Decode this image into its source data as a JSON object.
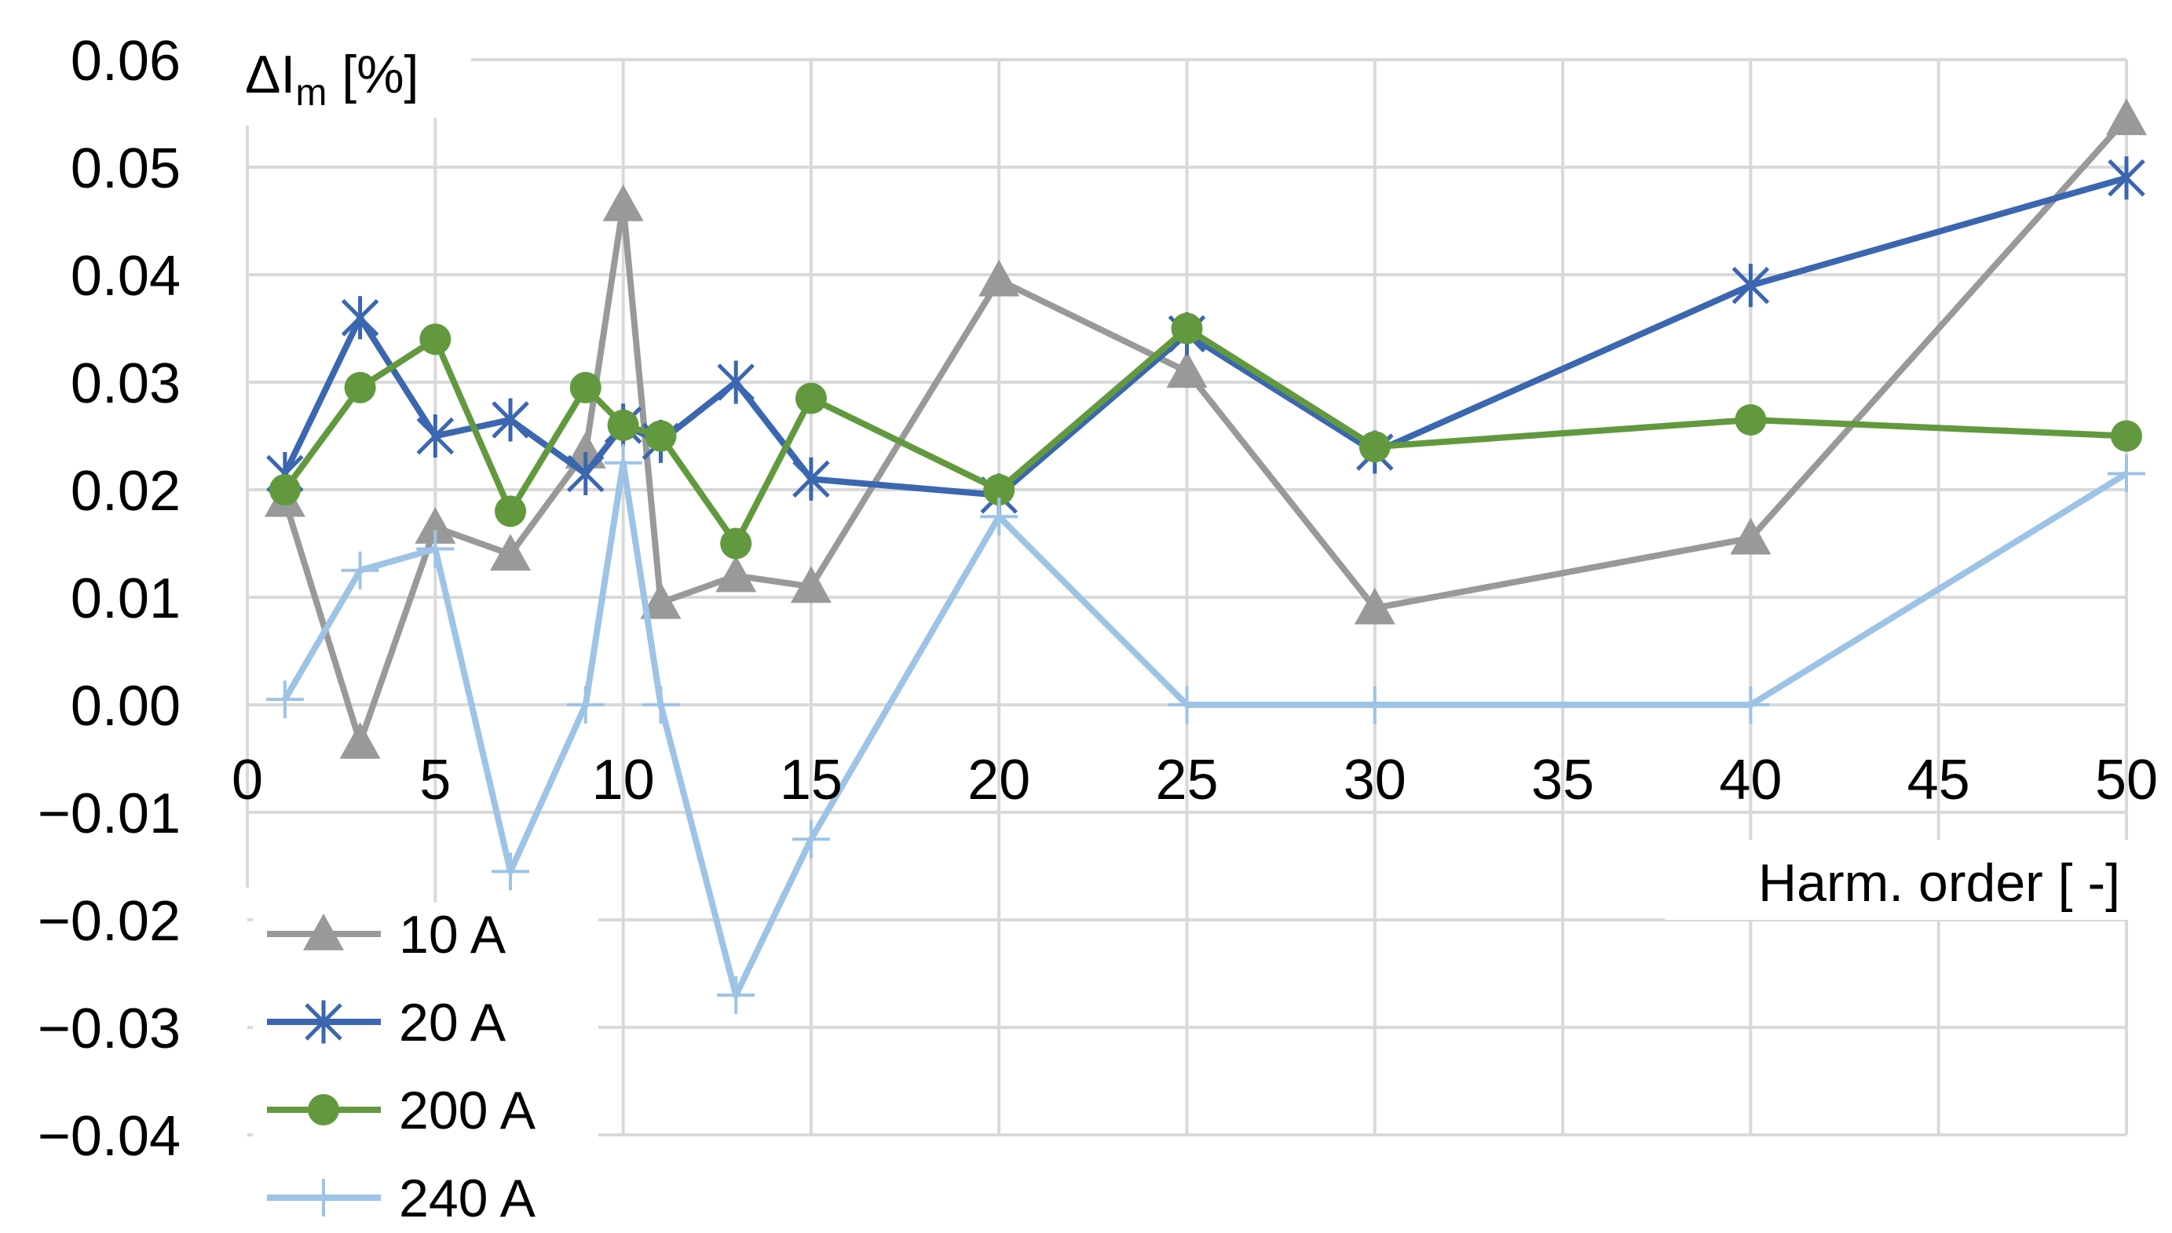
{
  "chart_data": {
    "type": "line",
    "ylabel_main": "ΔI",
    "ylabel_sub": "m",
    "ylabel_unit": " [%]",
    "xlabel": "Harm. order [ -]",
    "xlim": [
      0,
      50
    ],
    "ylim": [
      -0.04,
      0.06
    ],
    "x_ticks": [
      0,
      5,
      10,
      15,
      20,
      25,
      30,
      35,
      40,
      45,
      50
    ],
    "y_ticks": [
      "0.06",
      "0.05",
      "0.04",
      "0.03",
      "0.02",
      "0.01",
      "0.00",
      "−0.01",
      "−0.02",
      "−0.03",
      "−0.04"
    ],
    "y_tick_values": [
      0.06,
      0.05,
      0.04,
      0.03,
      0.02,
      0.01,
      0.0,
      -0.01,
      -0.02,
      -0.03,
      -0.04
    ],
    "grid": true,
    "legend_position": "bottom-left",
    "x": [
      1,
      3,
      5,
      7,
      9,
      10,
      11,
      13,
      15,
      20,
      25,
      30,
      40,
      50
    ],
    "series": [
      {
        "name": "10 A",
        "color": "#999999",
        "marker": "triangle",
        "values": [
          0.019,
          -0.0035,
          0.0165,
          0.014,
          0.0235,
          0.0465,
          0.0095,
          0.012,
          0.011,
          0.0395,
          0.031,
          0.009,
          0.0155,
          0.0545
        ]
      },
      {
        "name": "20 A",
        "color": "#3B66B0",
        "marker": "star",
        "values": [
          0.0215,
          0.036,
          0.025,
          0.0265,
          0.0215,
          0.026,
          0.0245,
          0.03,
          0.021,
          0.0195,
          0.0345,
          0.0235,
          0.039,
          0.049
        ]
      },
      {
        "name": "200 A",
        "color": "#62993E",
        "marker": "circle",
        "values": [
          0.02,
          0.0295,
          0.034,
          0.018,
          0.0295,
          0.026,
          0.025,
          0.015,
          0.0285,
          0.02,
          0.035,
          0.024,
          0.0265,
          0.025
        ]
      },
      {
        "name": "240 A",
        "color": "#9DC3E6",
        "marker": "plus",
        "values": [
          0.0005,
          0.0125,
          0.0145,
          -0.0155,
          0.0,
          0.0225,
          0.0,
          -0.027,
          -0.0125,
          0.0175,
          0.0,
          0.0,
          0.0,
          0.0215
        ]
      }
    ]
  }
}
